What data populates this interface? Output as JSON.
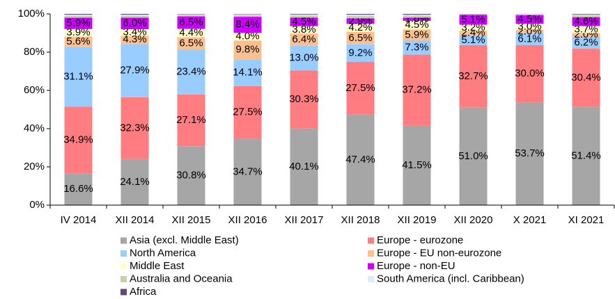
{
  "chart_data": {
    "type": "stacked_bar",
    "categories": [
      "IV 2014",
      "XII 2014",
      "XII 2015",
      "XII 2016",
      "XII 2017",
      "XII 2018",
      "XII 2019",
      "XII 2020",
      "X 2021",
      "XI 2021"
    ],
    "ylim": [
      0,
      100
    ],
    "yticks": [
      {
        "value": 0,
        "label": "0%"
      },
      {
        "value": 20,
        "label": "20%"
      },
      {
        "value": 40,
        "label": "40%"
      },
      {
        "value": 60,
        "label": "60%"
      },
      {
        "value": 80,
        "label": "80%"
      },
      {
        "value": 100,
        "label": "100%"
      }
    ],
    "series": [
      {
        "name": "Asia (excl. Middle East)",
        "color": "#a6a6a6",
        "values": [
          16.6,
          24.1,
          30.8,
          34.7,
          40.1,
          47.4,
          41.5,
          51.0,
          53.7,
          51.4
        ],
        "value_labels": [
          "16.6%",
          "24.1%",
          "30.8%",
          "34.7%",
          "40.1%",
          "47.4%",
          "41.5%",
          "51.0%",
          "53.7%",
          "51.4%"
        ]
      },
      {
        "name": "Europe - eurozone",
        "color": "#ff7c80",
        "values": [
          34.9,
          32.3,
          27.1,
          27.5,
          30.3,
          27.5,
          37.2,
          32.7,
          30.0,
          30.4
        ],
        "value_labels": [
          "34.9%",
          "32.3%",
          "27.1%",
          "27.5%",
          "30.3%",
          "27.5%",
          "37.2%",
          "32.7%",
          "30.0%",
          "30.4%"
        ]
      },
      {
        "name": "North America",
        "color": "#99ccff",
        "values": [
          31.1,
          27.9,
          23.4,
          14.1,
          13.0,
          9.2,
          7.3,
          5.1,
          6.1,
          6.2
        ],
        "value_labels": [
          "31.1%",
          "27.9%",
          "23.4%",
          "14.1%",
          "13.0%",
          "9.2%",
          "7.3%",
          "5.1%",
          "6.1%",
          "6.2%"
        ]
      },
      {
        "name": "Europe - EU non-eurozone",
        "color": "#fac090",
        "values": [
          5.6,
          4.3,
          6.5,
          9.8,
          6.4,
          6.5,
          5.9,
          2.4,
          2.0,
          2.0
        ],
        "value_labels": [
          "5.6%",
          "4.3%",
          "6.5%",
          "9.8%",
          "6.4%",
          "6.5%",
          "5.9%",
          "2.4%",
          "2.0%",
          "2.0%"
        ]
      },
      {
        "name": "Middle East",
        "color": "#ffffcc",
        "values": [
          3.9,
          3.4,
          4.4,
          4.0,
          3.8,
          4.2,
          4.5,
          3.2,
          3.0,
          3.7
        ],
        "value_labels": [
          "3.9%",
          "3.4%",
          "4.4%",
          "4.0%",
          "3.8%",
          "4.2%",
          "4.5%",
          "3.2%",
          "3.0%",
          "3.7%"
        ]
      },
      {
        "name": "Europe - non-EU",
        "color": "#cc00ff",
        "values": [
          5.9,
          6.0,
          6.5,
          8.4,
          4.5,
          2.9,
          1.6,
          5.1,
          4.5,
          4.6
        ],
        "value_labels": [
          "5.9%",
          "6.0%",
          "6.5%",
          "8.4%",
          "4.5%",
          "2.9%",
          "1.6%",
          "5.1%",
          "4.5%",
          "4.6%"
        ]
      },
      {
        "name": "Australia and Oceania",
        "color": "#c3d69b",
        "values": [
          1.0,
          1.0,
          0.7,
          0.8,
          1.0,
          1.2,
          1.0,
          0.3,
          0.4,
          1.0
        ]
      },
      {
        "name": "South America (incl. Caribbean)",
        "color": "#dbeef4",
        "values": [
          0.6,
          0.6,
          0.4,
          0.5,
          0.6,
          0.7,
          0.6,
          0.1,
          0.2,
          0.4
        ]
      },
      {
        "name": "Africa",
        "color": "#604a7b",
        "values": [
          0.4,
          0.4,
          0.2,
          0.2,
          0.3,
          0.4,
          0.4,
          0.1,
          0.1,
          0.3
        ]
      }
    ]
  }
}
